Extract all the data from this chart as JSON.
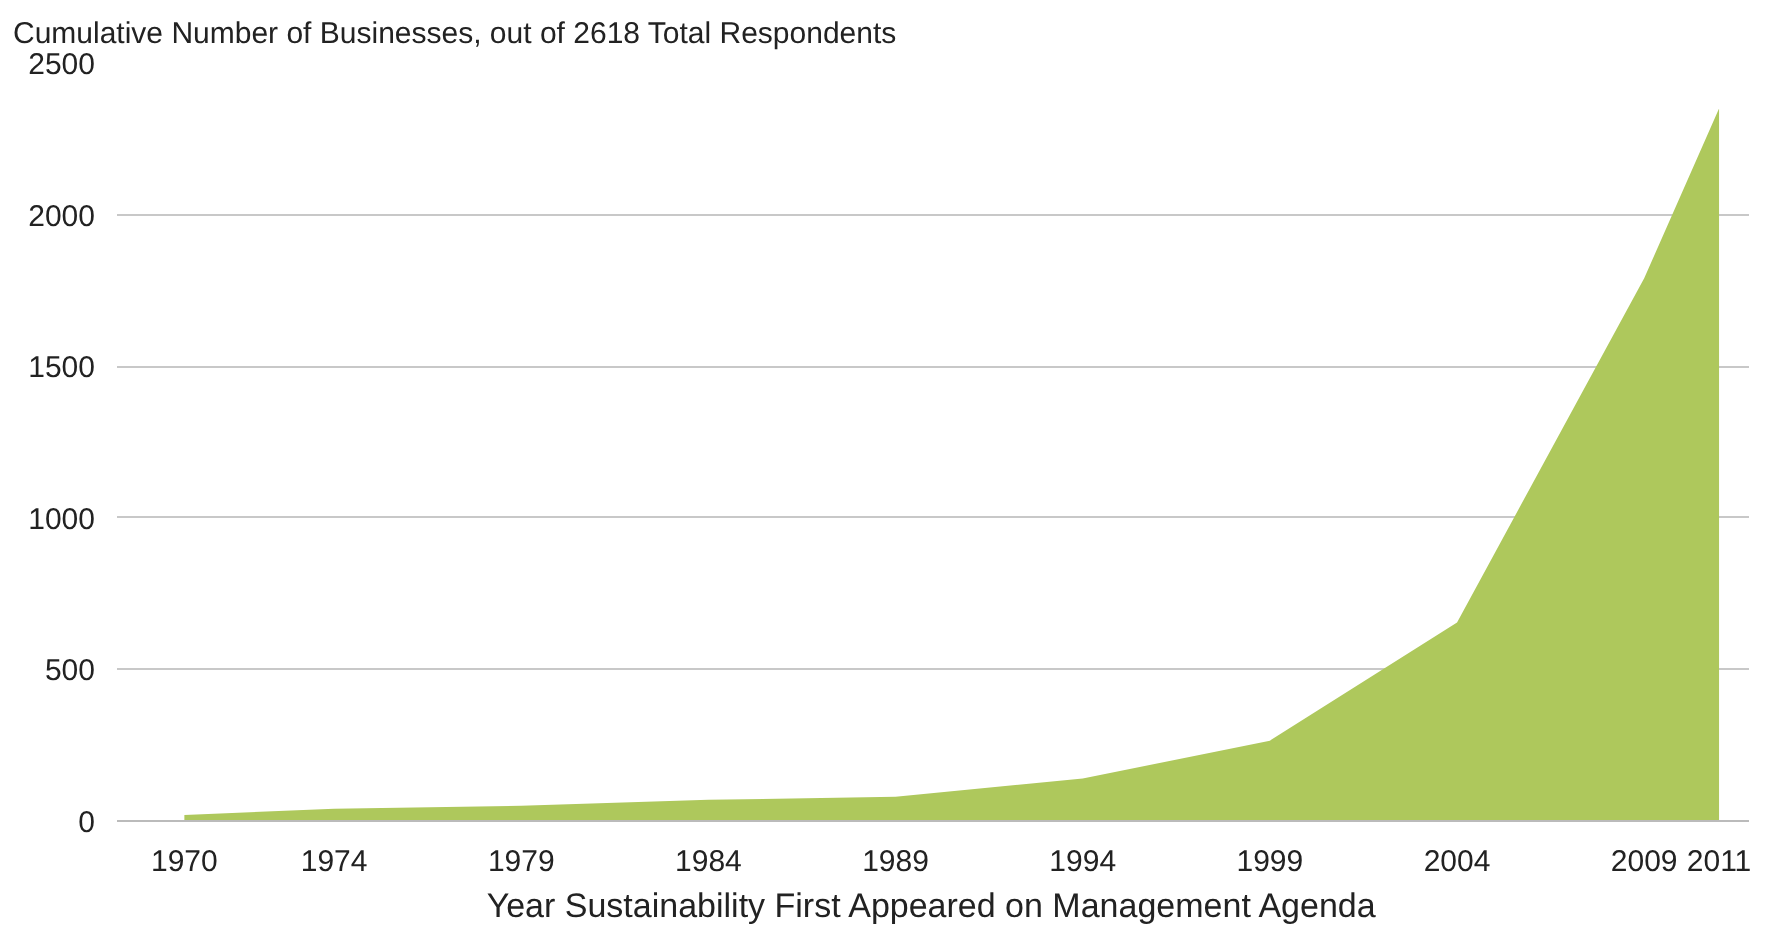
{
  "chart_data": {
    "type": "area",
    "title": "Cumulative Number of Businesses, out of 2618 Total Respondents",
    "xlabel": "Year Sustainability First Appeared on Management Agenda",
    "x": [
      1970,
      1974,
      1979,
      1984,
      1989,
      1994,
      1999,
      2004,
      2009,
      2011
    ],
    "series": [
      {
        "color": "#aec85c",
        "values": [
          20,
          40,
          50,
          70,
          80,
          140,
          265,
          655,
          1790,
          2350
        ]
      }
    ],
    "xlim": [
      1968.2,
      2011.8
    ],
    "xticks": [
      1970,
      1974,
      1979,
      1984,
      1989,
      1994,
      1999,
      2004,
      2009,
      2011
    ],
    "ylim": [
      0,
      2500
    ],
    "yticks": [
      0,
      500,
      1000,
      1500,
      2000,
      2500
    ],
    "grid": "y"
  }
}
